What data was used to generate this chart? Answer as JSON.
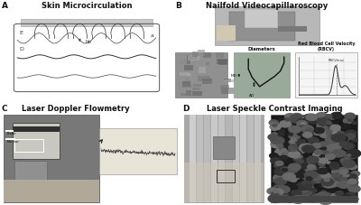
{
  "panel_A_label": "A",
  "panel_A_title": "Skin Microcirculation",
  "panel_B_label": "B",
  "panel_B_title": "Nailfold Videocapillaroscopy",
  "panel_C_label": "C",
  "panel_C_title": "Laser Doppler Flowmetry",
  "panel_D_label": "D",
  "panel_D_title": "Laser Speckle Contrast Imaging",
  "diameters_label": "Diameters",
  "rbcv_label": "Red Blood Cell Velocity\n(RBCV)",
  "bg_color": "#ffffff",
  "label_fontsize": 6.5,
  "title_fontsize": 6.0,
  "text_color": "#111111"
}
